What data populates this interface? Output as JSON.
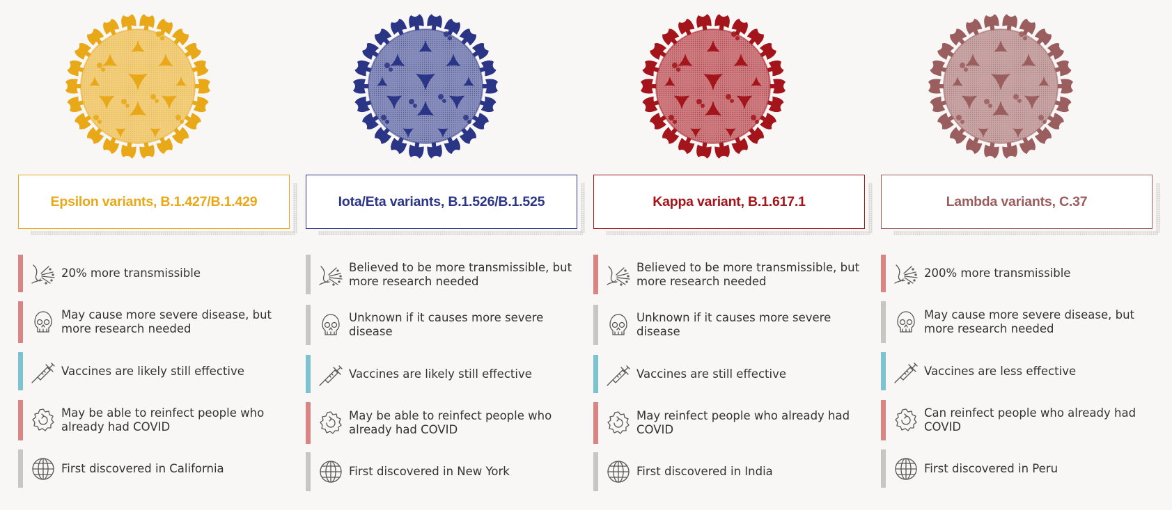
{
  "colors": {
    "epsilon": "#e8a818",
    "iota": "#2b3585",
    "kappa": "#a3141b",
    "lambda": "#9b5e5e",
    "bar_red": "#d88583",
    "bar_grey": "#c8c6c2",
    "bar_blue": "#7cc3cf"
  },
  "variants": [
    {
      "name": "Epsilon variants, B.1.427/B.1.429",
      "color": "#e8a818",
      "facts": [
        {
          "icon": "transmission-icon",
          "bar": "red",
          "text": "20% more transmissible"
        },
        {
          "icon": "skull-icon",
          "bar": "red",
          "text": "May cause more severe disease, but more research needed"
        },
        {
          "icon": "syringe-icon",
          "bar": "blue",
          "text": "Vaccines are likely still effective"
        },
        {
          "icon": "reinfection-icon",
          "bar": "red",
          "text": "May be able to reinfect people who already had COVID"
        },
        {
          "icon": "globe-icon",
          "bar": "grey",
          "text": "First discovered in California"
        }
      ]
    },
    {
      "name": "Iota/Eta variants, B.1.526/B.1.525",
      "color": "#2b3585",
      "facts": [
        {
          "icon": "transmission-icon",
          "bar": "grey",
          "text": "Believed to be more transmissible, but more research needed"
        },
        {
          "icon": "skull-icon",
          "bar": "grey",
          "text": "Unknown if it causes more severe disease"
        },
        {
          "icon": "syringe-icon",
          "bar": "blue",
          "text": "Vaccines are likely still effective"
        },
        {
          "icon": "reinfection-icon",
          "bar": "red",
          "text": "May be able to reinfect people who already had COVID"
        },
        {
          "icon": "globe-icon",
          "bar": "grey",
          "text": "First discovered in New York"
        }
      ]
    },
    {
      "name": "Kappa variant, B.1.617.1",
      "color": "#a3141b",
      "facts": [
        {
          "icon": "transmission-icon",
          "bar": "red",
          "text": "Believed to be more transmissible, but more research needed"
        },
        {
          "icon": "skull-icon",
          "bar": "grey",
          "text": "Unknown if it causes more severe disease"
        },
        {
          "icon": "syringe-icon",
          "bar": "blue",
          "text": "Vaccines are still effective"
        },
        {
          "icon": "reinfection-icon",
          "bar": "red",
          "text": "May reinfect people who already had COVID"
        },
        {
          "icon": "globe-icon",
          "bar": "grey",
          "text": "First discovered in India"
        }
      ]
    },
    {
      "name": "Lambda variants, C.37",
      "color": "#9b5e5e",
      "facts": [
        {
          "icon": "transmission-icon",
          "bar": "red",
          "text": "200% more transmissible"
        },
        {
          "icon": "skull-icon",
          "bar": "grey",
          "text": "May cause more severe disease, but more research needed"
        },
        {
          "icon": "syringe-icon",
          "bar": "blue",
          "text": "Vaccines are less effective"
        },
        {
          "icon": "reinfection-icon",
          "bar": "red",
          "text": "Can reinfect people who already had COVID"
        },
        {
          "icon": "globe-icon",
          "bar": "grey",
          "text": "First discovered in Peru"
        }
      ]
    }
  ]
}
